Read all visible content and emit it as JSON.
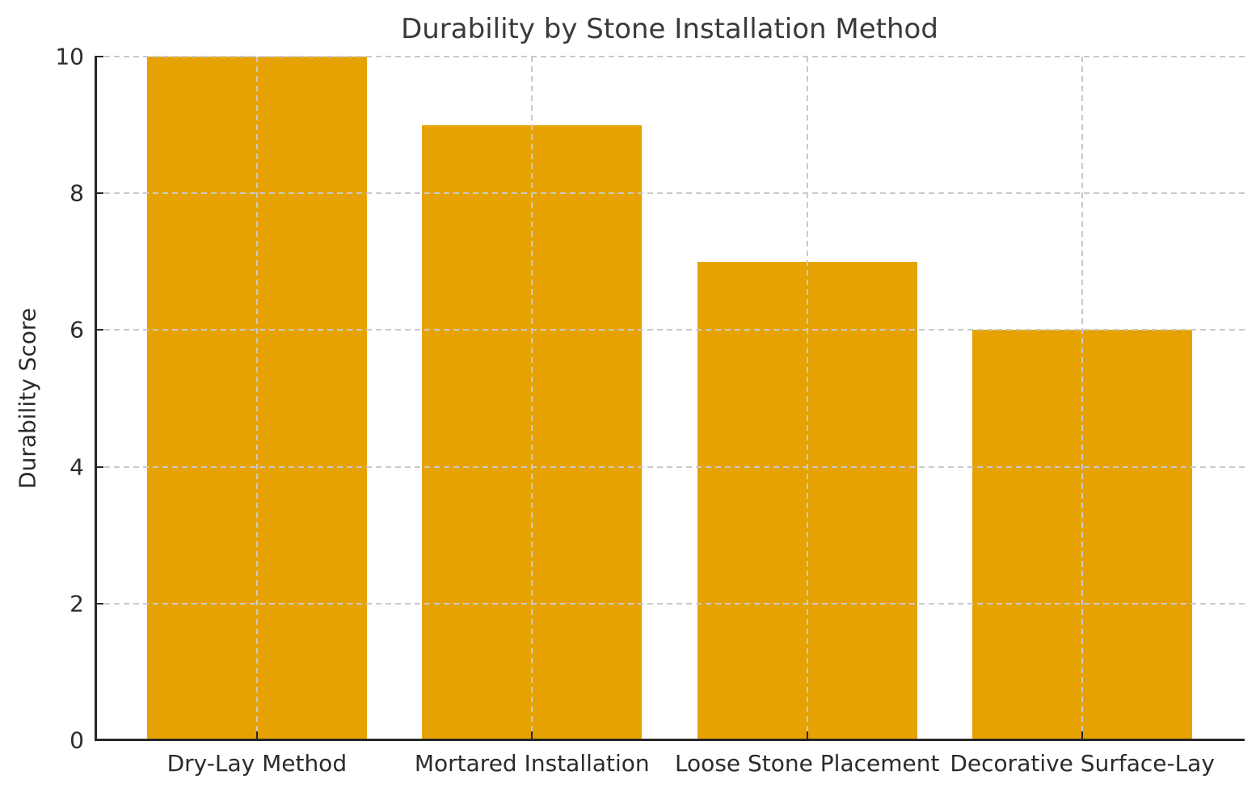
{
  "chart_data": {
    "type": "bar",
    "title": "Durability by Stone Installation Method",
    "xlabel": "",
    "ylabel": "Durability Score",
    "categories": [
      "Dry-Lay Method",
      "Mortared Installation",
      "Loose Stone Placement",
      "Decorative Surface-Lay"
    ],
    "values": [
      10,
      9,
      7,
      6
    ],
    "ylim": [
      0,
      10
    ],
    "yticks": [
      0,
      2,
      4,
      6,
      8,
      10
    ],
    "grid": "dashed both-axes drawn-above-bars",
    "legend": "none",
    "bar_color": "#E6A202"
  },
  "colors": {
    "bar": "#E6A202",
    "grid": "#C9C9C9",
    "axis": "#262626",
    "tick_text": "#2B2B2B",
    "title_text": "#3A3A3A",
    "background": "#FFFFFF"
  }
}
